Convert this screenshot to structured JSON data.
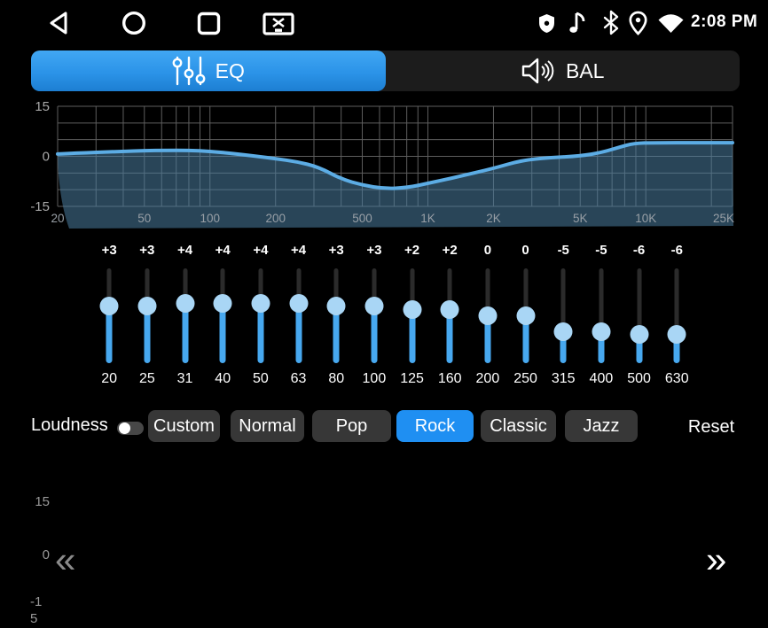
{
  "status_bar": {
    "time": "2:08 PM",
    "left_icons": [
      "back-icon",
      "home-icon",
      "recents-icon",
      "screenshot-icon"
    ],
    "right_icons": [
      "shield-icon",
      "music-note-icon",
      "bluetooth-icon",
      "location-icon",
      "wifi-icon"
    ]
  },
  "tabs": [
    {
      "label": "EQ",
      "icon": "equalizer-sliders-icon",
      "active": true
    },
    {
      "label": "BAL",
      "icon": "speaker-balance-icon",
      "active": false
    }
  ],
  "graph": {
    "db_range": [
      -15,
      15
    ],
    "freq_range": [
      20,
      25000
    ],
    "y_ticks": [
      {
        "label": "15",
        "db": 15
      },
      {
        "label": "0",
        "db": 0
      },
      {
        "label": "-15",
        "db": -15
      }
    ],
    "x_ticks": [
      {
        "label": "20",
        "freq": 20
      },
      {
        "label": "50",
        "freq": 50
      },
      {
        "label": "100",
        "freq": 100
      },
      {
        "label": "200",
        "freq": 200
      },
      {
        "label": "500",
        "freq": 500
      },
      {
        "label": "1K",
        "freq": 1000
      },
      {
        "label": "2K",
        "freq": 2000
      },
      {
        "label": "5K",
        "freq": 5000
      },
      {
        "label": "10K",
        "freq": 10000
      },
      {
        "label": "25K",
        "freq": 25000
      }
    ],
    "grid_freqs": [
      20,
      30,
      40,
      50,
      60,
      70,
      80,
      90,
      100,
      200,
      300,
      400,
      500,
      600,
      700,
      800,
      900,
      1000,
      2000,
      3000,
      4000,
      5000,
      6000,
      7000,
      8000,
      9000,
      10000,
      20000,
      25000
    ],
    "curve_points": [
      [
        20,
        0.7
      ],
      [
        25,
        1.0
      ],
      [
        31,
        1.2
      ],
      [
        40,
        1.5
      ],
      [
        50,
        1.7
      ],
      [
        63,
        1.8
      ],
      [
        80,
        1.8
      ],
      [
        100,
        1.5
      ],
      [
        125,
        0.9
      ],
      [
        160,
        0.1
      ],
      [
        200,
        -0.7
      ],
      [
        250,
        -1.6
      ],
      [
        315,
        -3.2
      ],
      [
        400,
        -6.8
      ],
      [
        500,
        -8.6
      ],
      [
        630,
        -9.7
      ],
      [
        800,
        -9.4
      ],
      [
        1000,
        -8.1
      ],
      [
        1400,
        -6.0
      ],
      [
        2000,
        -3.6
      ],
      [
        2700,
        -1.2
      ],
      [
        3600,
        -0.4
      ],
      [
        5000,
        0.1
      ],
      [
        6300,
        1.2
      ],
      [
        7600,
        2.8
      ],
      [
        8800,
        3.9
      ],
      [
        11000,
        4.1
      ],
      [
        25000,
        4.1
      ]
    ]
  },
  "equalizer": {
    "scale_labels": [
      "15",
      "0",
      "-15"
    ],
    "min_db": -15,
    "max_db": 15,
    "prev_icon": "chevrons-left-icon",
    "next_icon": "chevrons-right-icon",
    "bands": [
      {
        "freq": "20",
        "value": "+3",
        "db": 3
      },
      {
        "freq": "25",
        "value": "+3",
        "db": 3
      },
      {
        "freq": "31",
        "value": "+4",
        "db": 4
      },
      {
        "freq": "40",
        "value": "+4",
        "db": 4
      },
      {
        "freq": "50",
        "value": "+4",
        "db": 4
      },
      {
        "freq": "63",
        "value": "+4",
        "db": 4
      },
      {
        "freq": "80",
        "value": "+3",
        "db": 3
      },
      {
        "freq": "100",
        "value": "+3",
        "db": 3
      },
      {
        "freq": "125",
        "value": "+2",
        "db": 2
      },
      {
        "freq": "160",
        "value": "+2",
        "db": 2
      },
      {
        "freq": "200",
        "value": "0",
        "db": 0
      },
      {
        "freq": "250",
        "value": "0",
        "db": 0
      },
      {
        "freq": "315",
        "value": "-5",
        "db": -5
      },
      {
        "freq": "400",
        "value": "-5",
        "db": -5
      },
      {
        "freq": "500",
        "value": "-6",
        "db": -6
      },
      {
        "freq": "630",
        "value": "-6",
        "db": -6
      }
    ]
  },
  "bottom_bar": {
    "loudness": {
      "label": "Loudness",
      "enabled": false
    },
    "presets": [
      {
        "label": "Custom",
        "active": false
      },
      {
        "label": "Normal",
        "active": false
      },
      {
        "label": "Pop",
        "active": false
      },
      {
        "label": "Rock",
        "active": true
      },
      {
        "label": "Classic",
        "active": false
      },
      {
        "label": "Jazz",
        "active": false
      }
    ],
    "reset_label": "Reset"
  },
  "colors": {
    "accent": "#2196f3",
    "active_preset": "#1f8ff2",
    "slider_fill": "#47a8ef",
    "slider_thumb": "#a9d6f5",
    "curve_line": "#5cace4",
    "curve_fill": "rgba(74,125,160,0.55)",
    "grid_line": "#5e5e5e"
  }
}
